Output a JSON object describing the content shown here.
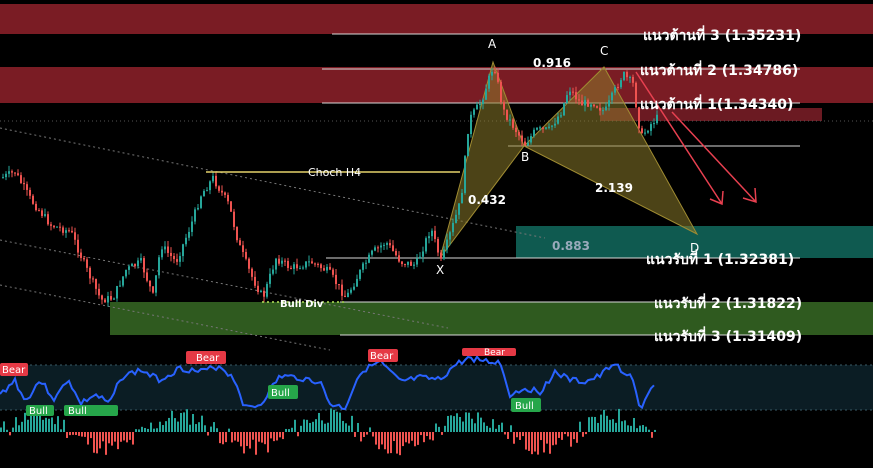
{
  "chart_data": {
    "type": "candlestick",
    "levels": {
      "resistance": [
        {
          "label": "แนวต้านที่ 3 (1.35231)",
          "value": 1.35231
        },
        {
          "label": "แนวต้านที่ 2 (1.34786)",
          "value": 1.34786
        },
        {
          "label": "แนวต้านที่ 1(1.34340)",
          "value": 1.3434
        }
      ],
      "support": [
        {
          "label": "แนวรับที่ 1 (1.32381)",
          "value": 1.32381
        },
        {
          "label": "แนวรับที่ 2 (1.31822)",
          "value": 1.31822
        },
        {
          "label": "แนวรับที่ 3 (1.31409)",
          "value": 1.31409
        }
      ]
    },
    "pattern_points": [
      "X",
      "A",
      "B",
      "C",
      "D"
    ],
    "fib_ratios": [
      "0.432",
      "0.916",
      "2.139",
      "0.883"
    ],
    "annotations": {
      "choch": "Choch H4",
      "bull_div": "Bull Div"
    },
    "oscillator_labels": [
      {
        "text": "Bear",
        "type": "bear"
      },
      {
        "text": "Bear",
        "type": "bear"
      },
      {
        "text": "Bear",
        "type": "bear"
      },
      {
        "text": "Bear",
        "type": "bear"
      },
      {
        "text": "Bull",
        "type": "bull"
      },
      {
        "text": "Bull",
        "type": "bull"
      },
      {
        "text": "Bull",
        "type": "bull"
      },
      {
        "text": "Bull",
        "type": "bull"
      }
    ],
    "colors": {
      "bull_candle": "#26a69a",
      "bear_candle": "#ef5350",
      "resistance_zone": "#7a1c24",
      "support_zone": "#0f5a50",
      "demand_zone": "#2f5a1f",
      "pattern_fill": "#8a7a2a",
      "oscillator_line": "#2962ff",
      "arrow": "#e84050"
    }
  }
}
